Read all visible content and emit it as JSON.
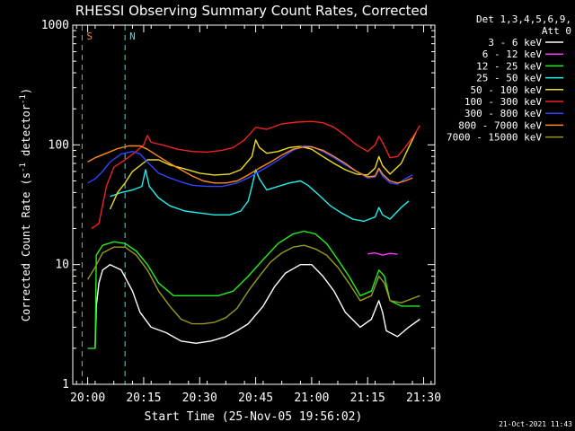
{
  "chart_data": {
    "type": "line",
    "title": "RHESSI Observing Summary Count Rates, Corrected",
    "xlabel": "Start Time (25-Nov-05 19:56:02)",
    "ylabel_parts": {
      "main": "Corrected Count Rate (s",
      "exp1": "-1",
      "mid": " detector",
      "exp2": "-1",
      "end": ")"
    },
    "yscale": "log",
    "ylim": [
      1,
      1000
    ],
    "xlim_minutes": [
      0,
      97
    ],
    "x_ticks": [
      {
        "t": 4,
        "label": "20:00"
      },
      {
        "t": 19,
        "label": "20:15"
      },
      {
        "t": 34,
        "label": "20:30"
      },
      {
        "t": 49,
        "label": "20:45"
      },
      {
        "t": 64,
        "label": "21:00"
      },
      {
        "t": 79,
        "label": "21:15"
      },
      {
        "t": 94,
        "label": "21:30"
      }
    ],
    "y_ticks": [
      {
        "v": 1,
        "label": "1"
      },
      {
        "v": 10,
        "label": "10"
      },
      {
        "v": 100,
        "label": "100"
      },
      {
        "v": 1000,
        "label": "1000"
      }
    ],
    "legend": {
      "header": [
        "Det 1,3,4,5,6,9,",
        "Att 0"
      ],
      "placement": "right"
    },
    "timestamp": "21-Oct-2021 11:43",
    "markers": [
      {
        "label": "S",
        "t": 2.5,
        "color": "#ff8c1a"
      },
      {
        "label": "N",
        "t": 14,
        "color": "#33e0f0"
      }
    ],
    "series": [
      {
        "name": "3 - 6 keV",
        "color": "#ffffff",
        "points": [
          [
            6,
            2.0
          ],
          [
            6.3,
            4.5
          ],
          [
            7,
            7
          ],
          [
            8,
            9
          ],
          [
            10,
            10
          ],
          [
            13,
            9
          ],
          [
            16,
            6
          ],
          [
            18,
            4
          ],
          [
            21,
            3
          ],
          [
            25,
            2.7
          ],
          [
            29,
            2.3
          ],
          [
            33,
            2.2
          ],
          [
            37,
            2.3
          ],
          [
            41,
            2.5
          ],
          [
            44,
            2.8
          ],
          [
            47,
            3.2
          ],
          [
            51,
            4.5
          ],
          [
            54,
            6.5
          ],
          [
            57,
            8.5
          ],
          [
            61,
            10
          ],
          [
            64,
            10
          ],
          [
            67,
            8
          ],
          [
            70,
            6
          ],
          [
            73,
            4
          ],
          [
            77,
            3
          ],
          [
            80,
            3.5
          ],
          [
            82,
            5
          ],
          [
            83,
            4
          ],
          [
            84,
            2.8
          ],
          [
            87,
            2.5
          ],
          [
            90,
            3
          ],
          [
            93,
            3.5
          ]
        ]
      },
      {
        "name": "6 - 12 keV",
        "color": "#ff33ff",
        "points": [
          [
            79,
            12.3
          ],
          [
            81,
            12.5
          ],
          [
            83,
            12
          ],
          [
            85,
            12.4
          ],
          [
            87,
            12.2
          ]
        ]
      },
      {
        "name": "12 - 25 keV",
        "color": "#22ee22",
        "points": [
          [
            4,
            2.0
          ],
          [
            6,
            2.0
          ],
          [
            6.3,
            12
          ],
          [
            8,
            14.5
          ],
          [
            11,
            15.5
          ],
          [
            14,
            15
          ],
          [
            17,
            13
          ],
          [
            20,
            10
          ],
          [
            23,
            7
          ],
          [
            27,
            5.5
          ],
          [
            31,
            5.5
          ],
          [
            35,
            5.5
          ],
          [
            39,
            5.5
          ],
          [
            43,
            6
          ],
          [
            47,
            8
          ],
          [
            51,
            11
          ],
          [
            55,
            15
          ],
          [
            59,
            18
          ],
          [
            62,
            19
          ],
          [
            65,
            18
          ],
          [
            68,
            15
          ],
          [
            71,
            11
          ],
          [
            74,
            8
          ],
          [
            77,
            5.5
          ],
          [
            80,
            6
          ],
          [
            82,
            9
          ],
          [
            83.5,
            8
          ],
          [
            85,
            5
          ],
          [
            88,
            4.5
          ],
          [
            91,
            4.5
          ],
          [
            93,
            4.5
          ]
        ]
      },
      {
        "name": "25 - 50 keV",
        "color": "#22eeee",
        "points": [
          [
            10,
            37
          ],
          [
            13,
            40
          ],
          [
            16,
            42
          ],
          [
            18.5,
            45
          ],
          [
            19.5,
            62
          ],
          [
            20.5,
            45
          ],
          [
            23,
            36
          ],
          [
            26,
            31
          ],
          [
            30,
            28
          ],
          [
            34,
            27
          ],
          [
            38,
            26
          ],
          [
            42,
            26
          ],
          [
            45,
            28
          ],
          [
            47,
            34
          ],
          [
            48,
            45
          ],
          [
            49,
            62
          ],
          [
            50,
            52
          ],
          [
            52,
            42
          ],
          [
            55,
            45
          ],
          [
            58,
            48
          ],
          [
            61,
            50
          ],
          [
            63,
            46
          ],
          [
            66,
            38
          ],
          [
            69,
            31
          ],
          [
            72,
            27
          ],
          [
            75,
            24
          ],
          [
            78,
            23
          ],
          [
            81,
            25
          ],
          [
            82,
            30
          ],
          [
            83,
            26
          ],
          [
            85,
            24
          ],
          [
            88,
            30
          ],
          [
            90,
            34
          ]
        ]
      },
      {
        "name": "50 - 100 keV",
        "color": "#eedd22",
        "points": [
          [
            10,
            29
          ],
          [
            12,
            40
          ],
          [
            14,
            48
          ],
          [
            16,
            60
          ],
          [
            18,
            67
          ],
          [
            20,
            75
          ],
          [
            23,
            75
          ],
          [
            26,
            68
          ],
          [
            30,
            63
          ],
          [
            34,
            58
          ],
          [
            38,
            56
          ],
          [
            42,
            57
          ],
          [
            45,
            62
          ],
          [
            48,
            80
          ],
          [
            49,
            110
          ],
          [
            50,
            95
          ],
          [
            52,
            85
          ],
          [
            55,
            88
          ],
          [
            58,
            95
          ],
          [
            61,
            97
          ],
          [
            64,
            92
          ],
          [
            67,
            80
          ],
          [
            70,
            70
          ],
          [
            73,
            62
          ],
          [
            76,
            57
          ],
          [
            79,
            56
          ],
          [
            81,
            64
          ],
          [
            82,
            80
          ],
          [
            83,
            67
          ],
          [
            85,
            57
          ],
          [
            88,
            70
          ],
          [
            90,
            95
          ],
          [
            92,
            128
          ]
        ]
      },
      {
        "name": "100 - 300 keV",
        "color": "#ee2222",
        "points": [
          [
            5,
            20
          ],
          [
            7,
            22
          ],
          [
            9,
            45
          ],
          [
            11,
            65
          ],
          [
            14,
            75
          ],
          [
            17,
            88
          ],
          [
            19,
            100
          ],
          [
            20,
            120
          ],
          [
            21,
            105
          ],
          [
            24,
            100
          ],
          [
            28,
            92
          ],
          [
            32,
            88
          ],
          [
            36,
            87
          ],
          [
            40,
            90
          ],
          [
            43,
            95
          ],
          [
            46,
            110
          ],
          [
            49,
            140
          ],
          [
            52,
            135
          ],
          [
            56,
            150
          ],
          [
            60,
            155
          ],
          [
            64,
            157
          ],
          [
            67,
            153
          ],
          [
            70,
            140
          ],
          [
            73,
            120
          ],
          [
            76,
            100
          ],
          [
            79,
            88
          ],
          [
            81,
            100
          ],
          [
            82,
            118
          ],
          [
            83,
            105
          ],
          [
            85,
            78
          ],
          [
            87,
            80
          ],
          [
            89,
            95
          ],
          [
            91,
            115
          ],
          [
            93,
            145
          ]
        ]
      },
      {
        "name": "300 - 800 keV",
        "color": "#3344ff",
        "points": [
          [
            4,
            48
          ],
          [
            6,
            52
          ],
          [
            8,
            60
          ],
          [
            10,
            72
          ],
          [
            13,
            84
          ],
          [
            16,
            88
          ],
          [
            18,
            84
          ],
          [
            20,
            72
          ],
          [
            23,
            58
          ],
          [
            26,
            53
          ],
          [
            29,
            49
          ],
          [
            32,
            46
          ],
          [
            36,
            45
          ],
          [
            40,
            45
          ],
          [
            44,
            48
          ],
          [
            47,
            53
          ],
          [
            50,
            60
          ],
          [
            53,
            68
          ],
          [
            56,
            78
          ],
          [
            59,
            90
          ],
          [
            62,
            98
          ],
          [
            64,
            97
          ],
          [
            67,
            88
          ],
          [
            70,
            78
          ],
          [
            73,
            68
          ],
          [
            76,
            60
          ],
          [
            79,
            53
          ],
          [
            81,
            54
          ],
          [
            82,
            62
          ],
          [
            83,
            55
          ],
          [
            85,
            48
          ],
          [
            87,
            47
          ],
          [
            89,
            52
          ],
          [
            91,
            56
          ]
        ]
      },
      {
        "name": "800 - 7000 keV",
        "color": "#ff8c1a",
        "points": [
          [
            4,
            72
          ],
          [
            6,
            78
          ],
          [
            9,
            85
          ],
          [
            12,
            93
          ],
          [
            15,
            98
          ],
          [
            18,
            98
          ],
          [
            20,
            92
          ],
          [
            23,
            80
          ],
          [
            26,
            70
          ],
          [
            29,
            62
          ],
          [
            32,
            55
          ],
          [
            35,
            50
          ],
          [
            38,
            48
          ],
          [
            41,
            48
          ],
          [
            44,
            50
          ],
          [
            47,
            56
          ],
          [
            50,
            64
          ],
          [
            53,
            72
          ],
          [
            56,
            82
          ],
          [
            59,
            92
          ],
          [
            62,
            96
          ],
          [
            64,
            96
          ],
          [
            67,
            90
          ],
          [
            70,
            80
          ],
          [
            73,
            70
          ],
          [
            76,
            60
          ],
          [
            79,
            54
          ],
          [
            81,
            55
          ],
          [
            82,
            64
          ],
          [
            83,
            57
          ],
          [
            85,
            50
          ],
          [
            87,
            48
          ],
          [
            89,
            50
          ],
          [
            91,
            53
          ]
        ]
      },
      {
        "name": "7000 - 15000 keV",
        "color": "#999922",
        "points": [
          [
            4,
            7.5
          ],
          [
            6,
            9.5
          ],
          [
            8,
            12.5
          ],
          [
            11,
            14
          ],
          [
            14,
            14
          ],
          [
            17,
            12
          ],
          [
            20,
            9
          ],
          [
            23,
            6
          ],
          [
            26,
            4.5
          ],
          [
            29,
            3.5
          ],
          [
            32,
            3.2
          ],
          [
            35,
            3.2
          ],
          [
            38,
            3.3
          ],
          [
            41,
            3.6
          ],
          [
            44,
            4.3
          ],
          [
            47,
            6
          ],
          [
            50,
            8
          ],
          [
            53,
            10.5
          ],
          [
            56,
            12.5
          ],
          [
            59,
            14
          ],
          [
            62,
            14.5
          ],
          [
            65,
            13.5
          ],
          [
            68,
            12
          ],
          [
            71,
            9.5
          ],
          [
            74,
            7
          ],
          [
            77,
            5
          ],
          [
            80,
            5.5
          ],
          [
            82,
            8
          ],
          [
            83.5,
            7
          ],
          [
            85,
            5
          ],
          [
            88,
            4.8
          ],
          [
            91,
            5.2
          ],
          [
            93,
            5.5
          ]
        ]
      }
    ]
  }
}
